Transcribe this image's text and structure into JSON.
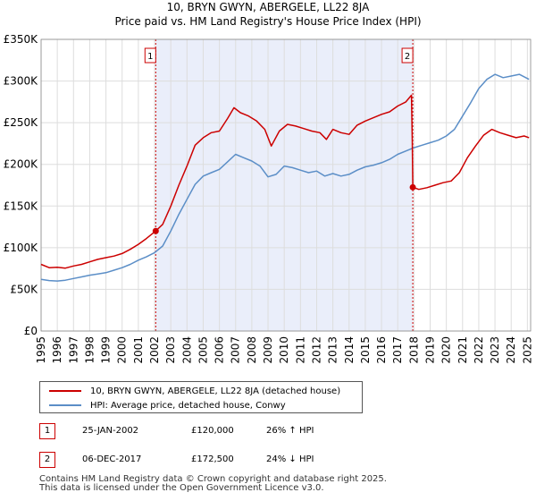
{
  "chart_data": {
    "type": "line",
    "title": "10, BRYN GWYN, ABERGELE, LL22 8JA",
    "subtitle": "Price paid vs. HM Land Registry's House Price Index (HPI)",
    "xlim": [
      1995,
      2025.2
    ],
    "ylim": [
      0,
      350000
    ],
    "x_ticks": [
      "1995",
      "1996",
      "1997",
      "1998",
      "1999",
      "2000",
      "2001",
      "2002",
      "2003",
      "2004",
      "2005",
      "2006",
      "2007",
      "2008",
      "2009",
      "2010",
      "2011",
      "2012",
      "2013",
      "2014",
      "2015",
      "2016",
      "2017",
      "2018",
      "2019",
      "2020",
      "2021",
      "2022",
      "2023",
      "2024",
      "2025"
    ],
    "y_ticks": [
      {
        "value": 0,
        "label": "£0"
      },
      {
        "value": 50000,
        "label": "£50K"
      },
      {
        "value": 100000,
        "label": "£100K"
      },
      {
        "value": 150000,
        "label": "£150K"
      },
      {
        "value": 200000,
        "label": "£200K"
      },
      {
        "value": 250000,
        "label": "£250K"
      },
      {
        "value": 300000,
        "label": "£300K"
      },
      {
        "value": 350000,
        "label": "£350K"
      }
    ],
    "shaded_range": [
      2002.07,
      2017.93
    ],
    "series": [
      {
        "name": "10, BRYN GWYN, ABERGELE, LL22 8JA (detached house)",
        "color": "#cc0000",
        "points": [
          [
            1995.0,
            80000
          ],
          [
            1995.5,
            76000
          ],
          [
            1996.0,
            76500
          ],
          [
            1996.5,
            75500
          ],
          [
            1997.0,
            78000
          ],
          [
            1997.5,
            80000
          ],
          [
            1998.0,
            83000
          ],
          [
            1998.5,
            86000
          ],
          [
            1999.0,
            88000
          ],
          [
            1999.5,
            90000
          ],
          [
            2000.0,
            93000
          ],
          [
            2000.5,
            98000
          ],
          [
            2001.0,
            104000
          ],
          [
            2001.5,
            111000
          ],
          [
            2002.07,
            120000
          ],
          [
            2002.5,
            128000
          ],
          [
            2003.0,
            150000
          ],
          [
            2003.5,
            175000
          ],
          [
            2004.0,
            198000
          ],
          [
            2004.5,
            223000
          ],
          [
            2005.0,
            232000
          ],
          [
            2005.5,
            238000
          ],
          [
            2006.0,
            240000
          ],
          [
            2006.5,
            255000
          ],
          [
            2006.9,
            268000
          ],
          [
            2007.3,
            262000
          ],
          [
            2007.8,
            258000
          ],
          [
            2008.3,
            252000
          ],
          [
            2008.8,
            242000
          ],
          [
            2009.2,
            222000
          ],
          [
            2009.7,
            240000
          ],
          [
            2010.2,
            248000
          ],
          [
            2010.7,
            246000
          ],
          [
            2011.2,
            243000
          ],
          [
            2011.7,
            240000
          ],
          [
            2012.2,
            238000
          ],
          [
            2012.6,
            230000
          ],
          [
            2013.0,
            242000
          ],
          [
            2013.5,
            238000
          ],
          [
            2014.0,
            236000
          ],
          [
            2014.5,
            247000
          ],
          [
            2015.0,
            252000
          ],
          [
            2015.5,
            256000
          ],
          [
            2016.0,
            260000
          ],
          [
            2016.5,
            263000
          ],
          [
            2017.0,
            270000
          ],
          [
            2017.5,
            275000
          ],
          [
            2017.85,
            283000
          ],
          [
            2017.9,
            228000
          ],
          [
            2017.93,
            172500
          ],
          [
            2018.3,
            170000
          ],
          [
            2018.8,
            172000
          ],
          [
            2019.3,
            175000
          ],
          [
            2019.8,
            178000
          ],
          [
            2020.3,
            180000
          ],
          [
            2020.8,
            190000
          ],
          [
            2021.3,
            208000
          ],
          [
            2021.8,
            222000
          ],
          [
            2022.3,
            235000
          ],
          [
            2022.8,
            242000
          ],
          [
            2023.3,
            238000
          ],
          [
            2023.8,
            235000
          ],
          [
            2024.3,
            232000
          ],
          [
            2024.8,
            234000
          ],
          [
            2025.1,
            232000
          ]
        ]
      },
      {
        "name": "HPI: Average price, detached house, Conwy",
        "color": "#5b8ec7",
        "points": [
          [
            1995.0,
            62000
          ],
          [
            1995.5,
            60500
          ],
          [
            1996.0,
            60000
          ],
          [
            1996.5,
            61000
          ],
          [
            1997.0,
            63000
          ],
          [
            1997.5,
            65000
          ],
          [
            1998.0,
            67000
          ],
          [
            1998.5,
            68500
          ],
          [
            1999.0,
            70000
          ],
          [
            1999.5,
            73000
          ],
          [
            2000.0,
            76000
          ],
          [
            2000.5,
            80000
          ],
          [
            2001.0,
            85000
          ],
          [
            2001.5,
            89000
          ],
          [
            2002.0,
            94000
          ],
          [
            2002.5,
            102000
          ],
          [
            2003.0,
            120000
          ],
          [
            2003.5,
            140000
          ],
          [
            2004.0,
            158000
          ],
          [
            2004.5,
            176000
          ],
          [
            2005.0,
            186000
          ],
          [
            2005.5,
            190000
          ],
          [
            2006.0,
            194000
          ],
          [
            2006.5,
            203000
          ],
          [
            2007.0,
            212000
          ],
          [
            2007.5,
            208000
          ],
          [
            2008.0,
            204000
          ],
          [
            2008.5,
            198000
          ],
          [
            2009.0,
            185000
          ],
          [
            2009.5,
            188000
          ],
          [
            2010.0,
            198000
          ],
          [
            2010.5,
            196000
          ],
          [
            2011.0,
            193000
          ],
          [
            2011.5,
            190000
          ],
          [
            2012.0,
            192000
          ],
          [
            2012.5,
            186000
          ],
          [
            2013.0,
            189000
          ],
          [
            2013.5,
            186000
          ],
          [
            2014.0,
            188000
          ],
          [
            2014.5,
            193000
          ],
          [
            2015.0,
            197000
          ],
          [
            2015.5,
            199000
          ],
          [
            2016.0,
            202000
          ],
          [
            2016.5,
            206000
          ],
          [
            2017.0,
            212000
          ],
          [
            2017.5,
            216000
          ],
          [
            2018.0,
            220000
          ],
          [
            2018.5,
            223000
          ],
          [
            2019.0,
            226000
          ],
          [
            2019.5,
            229000
          ],
          [
            2020.0,
            234000
          ],
          [
            2020.5,
            242000
          ],
          [
            2021.0,
            258000
          ],
          [
            2021.5,
            274000
          ],
          [
            2022.0,
            291000
          ],
          [
            2022.5,
            302000
          ],
          [
            2023.0,
            308000
          ],
          [
            2023.5,
            304000
          ],
          [
            2024.0,
            306000
          ],
          [
            2024.5,
            308000
          ],
          [
            2025.1,
            302000
          ]
        ]
      }
    ],
    "sales": [
      {
        "label": "1",
        "x": 2002.07,
        "price": 120000
      },
      {
        "label": "2",
        "x": 2017.93,
        "price": 172500
      }
    ]
  },
  "legend": {
    "property_label": "10, BRYN GWYN, ABERGELE, LL22 8JA (detached house)",
    "hpi_label": "HPI: Average price, detached house, Conwy",
    "property_color": "#cc0000",
    "hpi_color": "#5b8ec7"
  },
  "sales_table": [
    {
      "num": "1",
      "date": "25-JAN-2002",
      "price": "£120,000",
      "hpi": "26% ↑ HPI"
    },
    {
      "num": "2",
      "date": "06-DEC-2017",
      "price": "£172,500",
      "hpi": "24% ↓ HPI"
    }
  ],
  "footer": {
    "line1": "Contains HM Land Registry data © Crown copyright and database right 2025.",
    "line2": "This data is licensed under the Open Government Licence v3.0."
  }
}
